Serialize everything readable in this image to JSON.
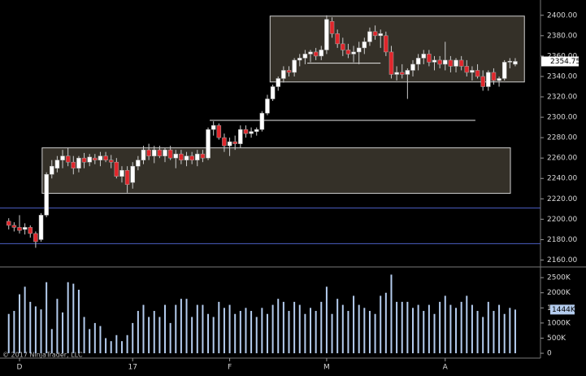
{
  "chart_data": [
    {
      "type": "candlestick",
      "open": [
        2198,
        2194,
        2192,
        2190,
        2192,
        2186,
        2180,
        2204,
        2244,
        2250,
        2258,
        2262,
        2256,
        2250,
        2260,
        2256,
        2260,
        2258,
        2262,
        2258,
        2256,
        2242,
        2248,
        2236,
        2252,
        2258,
        2268,
        2262,
        2268,
        2262,
        2268,
        2260,
        2264,
        2258,
        2262,
        2258,
        2264,
        2260,
        2288,
        2292,
        2280,
        2272,
        2276,
        2274,
        2288,
        2284,
        2286,
        2288,
        2304,
        2318,
        2330,
        2338,
        2346,
        2344,
        2356,
        2358,
        2362,
        2364,
        2360,
        2366,
        2394,
        2382,
        2372,
        2366,
        2362,
        2364,
        2368,
        2374,
        2384,
        2380,
        2380,
        2364,
        2342,
        2344,
        2342,
        2346,
        2352,
        2358,
        2362,
        2354,
        2356,
        2352,
        2356,
        2350,
        2356,
        2350,
        2344,
        2346,
        2340,
        2330,
        2344,
        2336,
        2338,
        2354,
        2352
      ],
      "high": [
        2201,
        2197,
        2204,
        2196,
        2194,
        2188,
        2206,
        2246,
        2258,
        2262,
        2268,
        2270,
        2262,
        2262,
        2265,
        2264,
        2264,
        2266,
        2266,
        2263,
        2260,
        2252,
        2252,
        2256,
        2262,
        2272,
        2274,
        2272,
        2272,
        2270,
        2272,
        2268,
        2268,
        2266,
        2266,
        2268,
        2268,
        2290,
        2296,
        2294,
        2284,
        2280,
        2282,
        2292,
        2292,
        2290,
        2290,
        2306,
        2322,
        2332,
        2340,
        2350,
        2350,
        2358,
        2362,
        2366,
        2366,
        2368,
        2370,
        2400,
        2398,
        2386,
        2378,
        2372,
        2370,
        2374,
        2378,
        2388,
        2390,
        2386,
        2384,
        2370,
        2350,
        2352,
        2348,
        2356,
        2362,
        2366,
        2366,
        2360,
        2360,
        2374,
        2360,
        2358,
        2360,
        2356,
        2350,
        2352,
        2346,
        2346,
        2348,
        2340,
        2356,
        2358,
        2358
      ],
      "low": [
        2190,
        2188,
        2186,
        2185,
        2182,
        2172,
        2178,
        2202,
        2240,
        2246,
        2250,
        2252,
        2244,
        2246,
        2250,
        2252,
        2254,
        2252,
        2256,
        2250,
        2240,
        2236,
        2226,
        2230,
        2248,
        2254,
        2258,
        2255,
        2260,
        2256,
        2258,
        2250,
        2254,
        2252,
        2254,
        2252,
        2256,
        2258,
        2282,
        2278,
        2266,
        2262,
        2268,
        2270,
        2280,
        2280,
        2282,
        2286,
        2302,
        2316,
        2326,
        2334,
        2340,
        2340,
        2350,
        2352,
        2354,
        2356,
        2356,
        2362,
        2378,
        2368,
        2360,
        2358,
        2354,
        2352,
        2362,
        2370,
        2376,
        2368,
        2360,
        2338,
        2336,
        2338,
        2318,
        2340,
        2346,
        2352,
        2350,
        2346,
        2348,
        2346,
        2344,
        2344,
        2346,
        2340,
        2336,
        2338,
        2326,
        2326,
        2332,
        2330,
        2336,
        2348,
        2350
      ],
      "close": [
        2194,
        2192,
        2189,
        2192,
        2186,
        2178,
        2204,
        2244,
        2252,
        2258,
        2262,
        2256,
        2250,
        2260,
        2256,
        2261,
        2258,
        2262,
        2258,
        2256,
        2242,
        2248,
        2234,
        2252,
        2258,
        2268,
        2262,
        2268,
        2262,
        2268,
        2260,
        2264,
        2258,
        2262,
        2258,
        2264,
        2260,
        2288,
        2292,
        2280,
        2272,
        2276,
        2274,
        2288,
        2284,
        2286,
        2288,
        2304,
        2318,
        2330,
        2338,
        2346,
        2344,
        2356,
        2358,
        2362,
        2364,
        2360,
        2366,
        2396,
        2382,
        2372,
        2366,
        2362,
        2364,
        2368,
        2374,
        2384,
        2380,
        2382,
        2364,
        2342,
        2344,
        2342,
        2346,
        2352,
        2358,
        2362,
        2354,
        2356,
        2352,
        2356,
        2350,
        2356,
        2350,
        2344,
        2346,
        2340,
        2330,
        2344,
        2336,
        2338,
        2354,
        2355,
        2354.75
      ],
      "up_color": "#ffffff",
      "down_color": "#e0262b",
      "ylim": [
        2154,
        2411
      ],
      "yticks": [
        {
          "value": 2160,
          "label": "2160.00"
        },
        {
          "value": 2180,
          "label": "2180.00"
        },
        {
          "value": 2200,
          "label": "2200.00"
        },
        {
          "value": 2220,
          "label": "2220.00"
        },
        {
          "value": 2240,
          "label": "2240.00"
        },
        {
          "value": 2260,
          "label": "2260.00"
        },
        {
          "value": 2280,
          "label": "2280.00"
        },
        {
          "value": 2300,
          "label": "2300.00"
        },
        {
          "value": 2320,
          "label": "2320.00"
        },
        {
          "value": 2340,
          "label": "2340.00"
        },
        {
          "value": 2360,
          "label": "2360.00"
        },
        {
          "value": 2380,
          "label": "2380.00"
        },
        {
          "value": 2400,
          "label": "2400.00"
        }
      ],
      "last_price": 2354.75,
      "regions": [
        {
          "x": [
            6.2,
            93.1
          ],
          "y": [
            2225.4,
            2270
          ]
        },
        {
          "x": [
            48.5,
            95.7
          ],
          "y": [
            2334.6,
            2399.2
          ]
        }
      ],
      "segments": [
        {
          "x": [
            37.3,
            86.6
          ],
          "value": 2297
        },
        {
          "x": [
            55.4,
            69
          ],
          "value": 2353
        }
      ],
      "hlines": [
        {
          "value": 2211,
          "color": "#4b5fc4"
        },
        {
          "value": 2176,
          "color": "#4b5fc4"
        }
      ]
    },
    {
      "type": "bar",
      "categories": [
        null,
        null,
        "D",
        null,
        null,
        null,
        null,
        null,
        null,
        null,
        null,
        null,
        null,
        null,
        null,
        null,
        null,
        null,
        null,
        null,
        null,
        null,
        null,
        "17",
        null,
        null,
        null,
        null,
        null,
        null,
        null,
        null,
        null,
        null,
        null,
        null,
        null,
        null,
        null,
        null,
        null,
        "F",
        null,
        null,
        null,
        null,
        null,
        null,
        null,
        null,
        null,
        null,
        null,
        null,
        null,
        null,
        null,
        null,
        null,
        "M",
        null,
        null,
        null,
        null,
        null,
        null,
        null,
        null,
        null,
        null,
        null,
        null,
        null,
        null,
        null,
        null,
        null,
        null,
        null,
        null,
        null,
        "A",
        null,
        null,
        null,
        null,
        null,
        null,
        null,
        null,
        null,
        null,
        null,
        null,
        null
      ],
      "values": [
        1300,
        1400,
        1950,
        2200,
        1700,
        1550,
        1450,
        2350,
        800,
        1800,
        1350,
        2350,
        2300,
        2100,
        1200,
        800,
        1000,
        900,
        500,
        400,
        600,
        400,
        600,
        1000,
        1400,
        1600,
        1200,
        1400,
        1200,
        1600,
        1000,
        1600,
        1800,
        1800,
        1200,
        1600,
        1600,
        1300,
        1200,
        1700,
        1500,
        1600,
        1300,
        1400,
        1500,
        1400,
        1200,
        1500,
        1300,
        1600,
        1800,
        1700,
        1400,
        1700,
        1600,
        1300,
        1500,
        1400,
        1700,
        2200,
        1300,
        1800,
        1600,
        1400,
        1900,
        1600,
        1500,
        1400,
        1300,
        1900,
        2000,
        2600,
        1700,
        1700,
        1700,
        1500,
        1600,
        1400,
        1600,
        1300,
        1700,
        1900,
        1600,
        1500,
        1700,
        1900,
        1600,
        1400,
        1200,
        1700,
        1400,
        1600,
        1300,
        1500,
        1444
      ],
      "color": "#b4ccee",
      "ylim": [
        -160,
        2800
      ],
      "yticks": [
        0,
        {
          "value": 500,
          "label": "500K"
        },
        {
          "value": 1000,
          "label": "1000K"
        },
        {
          "value": 1500,
          "label": "1500K"
        },
        {
          "value": 2000,
          "label": "2000K"
        },
        {
          "value": 2500,
          "label": "2500K"
        }
      ],
      "last_value": {
        "value": 1444,
        "label": "1444K"
      }
    }
  ],
  "copyright": "© 2017 NinjaTrader, LLC"
}
